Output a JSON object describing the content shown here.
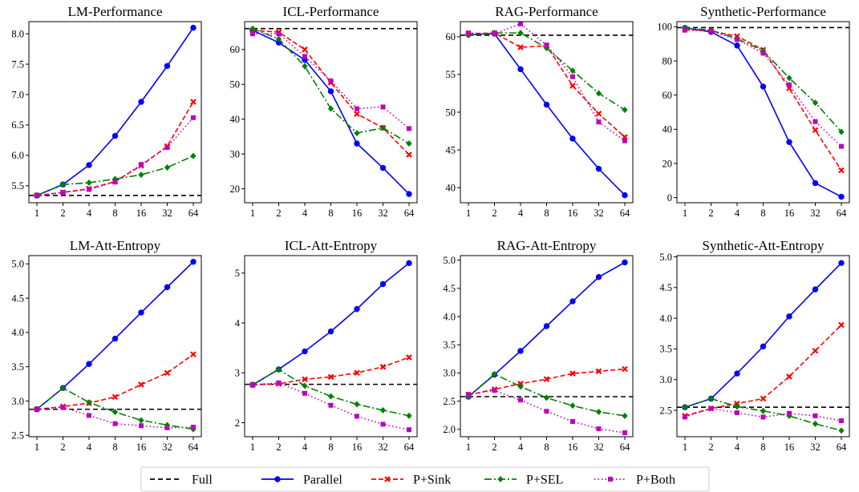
{
  "figure": {
    "x_ticks": [
      "1",
      "2",
      "4",
      "8",
      "16",
      "32",
      "64"
    ]
  },
  "legend": {
    "placement": "bottom-center",
    "items": [
      {
        "label": "Full",
        "color": "#000000",
        "dash": "6,4",
        "marker": "none"
      },
      {
        "label": "Parallel",
        "color": "#0000ff",
        "dash": "",
        "marker": "circle"
      },
      {
        "label": "P+Sink",
        "color": "#ff0000",
        "dash": "6,3",
        "marker": "x"
      },
      {
        "label": "P+SEL",
        "color": "#008000",
        "dash": "9,3,2,3",
        "marker": "diamond"
      },
      {
        "label": "P+Both",
        "color": "#bf00bf",
        "dash": "1.5,3",
        "marker": "square"
      }
    ]
  },
  "chart_data": [
    {
      "type": "line",
      "title": "LM-Performance",
      "categories": [
        "1",
        "2",
        "4",
        "8",
        "16",
        "32",
        "64"
      ],
      "ylim": [
        5.22,
        8.2
      ],
      "yticks": [
        5.5,
        6.0,
        6.5,
        7.0,
        7.5,
        8.0
      ],
      "ytick_labels": [
        "5.5",
        "6.0",
        "6.5",
        "7.0",
        "7.5",
        "8.0"
      ],
      "full_baseline": 5.34,
      "series": [
        {
          "name": "Parallel",
          "values": [
            5.34,
            5.52,
            5.84,
            6.32,
            6.88,
            7.47,
            8.1
          ]
        },
        {
          "name": "P+Sink",
          "values": [
            5.34,
            5.39,
            5.45,
            5.57,
            5.83,
            6.15,
            6.88
          ]
        },
        {
          "name": "P+SEL",
          "values": [
            5.34,
            5.52,
            5.55,
            5.61,
            5.68,
            5.8,
            5.99
          ]
        },
        {
          "name": "P+Both",
          "values": [
            5.34,
            5.39,
            5.44,
            5.56,
            5.85,
            6.13,
            6.62
          ]
        }
      ]
    },
    {
      "type": "line",
      "title": "ICL-Performance",
      "categories": [
        "1",
        "2",
        "4",
        "8",
        "16",
        "32",
        "64"
      ],
      "ylim": [
        16,
        68
      ],
      "yticks": [
        20,
        30,
        40,
        50,
        60
      ],
      "ytick_labels": [
        "20",
        "30",
        "40",
        "50",
        "60"
      ],
      "full_baseline": 66,
      "series": [
        {
          "name": "Parallel",
          "values": [
            65.5,
            62,
            57,
            48,
            33,
            26,
            18.5
          ]
        },
        {
          "name": "P+Sink",
          "values": [
            65.5,
            65,
            60,
            50.5,
            41.5,
            37.5,
            29.8
          ]
        },
        {
          "name": "P+SEL",
          "values": [
            66,
            63,
            55.2,
            43,
            36,
            37.5,
            33
          ]
        },
        {
          "name": "P+Both",
          "values": [
            64.5,
            64.5,
            58,
            51,
            43,
            43.5,
            37.3
          ]
        }
      ]
    },
    {
      "type": "line",
      "title": "RAG-Performance",
      "categories": [
        "1",
        "2",
        "4",
        "8",
        "16",
        "32",
        "64"
      ],
      "ylim": [
        38,
        62
      ],
      "yticks": [
        40,
        45,
        50,
        55,
        60
      ],
      "ytick_labels": [
        "40",
        "45",
        "50",
        "55",
        "60"
      ],
      "full_baseline": 60.2,
      "series": [
        {
          "name": "Parallel",
          "values": [
            60.3,
            60.4,
            55.7,
            51,
            46.5,
            42.5,
            39
          ]
        },
        {
          "name": "P+Sink",
          "values": [
            60.4,
            60.5,
            58.6,
            58.8,
            53.5,
            49.8,
            46.7
          ]
        },
        {
          "name": "P+SEL",
          "values": [
            60.2,
            60.5,
            60.5,
            58.5,
            55.5,
            52.5,
            50.3
          ]
        },
        {
          "name": "P+Both",
          "values": [
            60.5,
            60.4,
            61.7,
            58.9,
            54.7,
            48.7,
            46.2
          ]
        }
      ]
    },
    {
      "type": "line",
      "title": "Synthetic-Performance",
      "categories": [
        "1",
        "2",
        "4",
        "8",
        "16",
        "32",
        "64"
      ],
      "ylim": [
        -3,
        103
      ],
      "yticks": [
        0,
        20,
        40,
        60,
        80,
        100
      ],
      "ytick_labels": [
        "0",
        "20",
        "40",
        "60",
        "80",
        "100"
      ],
      "full_baseline": 99.5,
      "series": [
        {
          "name": "Parallel",
          "values": [
            99.3,
            97,
            89,
            65,
            32.5,
            8.5,
            0.5
          ]
        },
        {
          "name": "P+Sink",
          "values": [
            98.5,
            97.5,
            94.5,
            86.5,
            64,
            39.5,
            16
          ]
        },
        {
          "name": "P+SEL",
          "values": [
            99.3,
            98,
            93,
            86,
            70,
            55.5,
            38.5
          ]
        },
        {
          "name": "P+Both",
          "values": [
            98,
            97.5,
            92.5,
            84.5,
            66,
            44.5,
            30
          ]
        }
      ]
    },
    {
      "type": "line",
      "title": "LM-Att-Entropy",
      "categories": [
        "1",
        "2",
        "4",
        "8",
        "16",
        "32",
        "64"
      ],
      "ylim": [
        2.48,
        5.12
      ],
      "yticks": [
        2.5,
        3.0,
        3.5,
        4.0,
        4.5,
        5.0
      ],
      "ytick_labels": [
        "2.5",
        "3.0",
        "3.5",
        "4.0",
        "4.5",
        "5.0"
      ],
      "full_baseline": 2.88,
      "series": [
        {
          "name": "Parallel",
          "values": [
            2.88,
            3.19,
            3.54,
            3.91,
            4.29,
            4.66,
            5.03
          ]
        },
        {
          "name": "P+Sink",
          "values": [
            2.88,
            2.92,
            2.97,
            3.06,
            3.24,
            3.41,
            3.68
          ]
        },
        {
          "name": "P+SEL",
          "values": [
            2.88,
            3.19,
            2.98,
            2.84,
            2.72,
            2.65,
            2.59
          ]
        },
        {
          "name": "P+Both",
          "values": [
            2.88,
            2.91,
            2.79,
            2.67,
            2.64,
            2.61,
            2.62
          ]
        }
      ]
    },
    {
      "type": "line",
      "title": "ICL-Att-Entropy",
      "categories": [
        "1",
        "2",
        "4",
        "8",
        "16",
        "32",
        "64"
      ],
      "ylim": [
        1.72,
        5.35
      ],
      "yticks": [
        2,
        3,
        4,
        5
      ],
      "ytick_labels": [
        "2",
        "3",
        "4",
        "5"
      ],
      "full_baseline": 2.77,
      "series": [
        {
          "name": "Parallel",
          "values": [
            2.76,
            3.07,
            3.43,
            3.83,
            4.28,
            4.78,
            5.2
          ]
        },
        {
          "name": "P+Sink",
          "values": [
            2.76,
            2.78,
            2.87,
            2.92,
            3.0,
            3.12,
            3.31
          ]
        },
        {
          "name": "P+SEL",
          "values": [
            2.76,
            3.07,
            2.74,
            2.53,
            2.37,
            2.25,
            2.14
          ]
        },
        {
          "name": "P+Both",
          "values": [
            2.76,
            2.8,
            2.59,
            2.35,
            2.13,
            1.97,
            1.86
          ]
        }
      ]
    },
    {
      "type": "line",
      "title": "RAG-Att-Entropy",
      "categories": [
        "1",
        "2",
        "4",
        "8",
        "16",
        "32",
        "64"
      ],
      "ylim": [
        1.87,
        5.08
      ],
      "yticks": [
        2.0,
        2.5,
        3.0,
        3.5,
        4.0,
        4.5,
        5.0
      ],
      "ytick_labels": [
        "2.0",
        "2.5",
        "3.0",
        "3.5",
        "4.0",
        "4.5",
        "5.0"
      ],
      "full_baseline": 2.58,
      "series": [
        {
          "name": "Parallel",
          "values": [
            2.58,
            2.97,
            3.39,
            3.83,
            4.27,
            4.7,
            4.96
          ]
        },
        {
          "name": "P+Sink",
          "values": [
            2.61,
            2.71,
            2.81,
            2.89,
            2.99,
            3.03,
            3.07
          ]
        },
        {
          "name": "P+SEL",
          "values": [
            2.58,
            2.98,
            2.76,
            2.56,
            2.42,
            2.31,
            2.24
          ]
        },
        {
          "name": "P+Both",
          "values": [
            2.62,
            2.69,
            2.52,
            2.32,
            2.14,
            2.01,
            1.94
          ]
        }
      ]
    },
    {
      "type": "line",
      "title": "Synthetic-Att-Entropy",
      "categories": [
        "1",
        "2",
        "4",
        "8",
        "16",
        "32",
        "64"
      ],
      "ylim": [
        2.07,
        5.02
      ],
      "yticks": [
        2.5,
        3.0,
        3.5,
        4.0,
        4.5,
        5.0
      ],
      "ytick_labels": [
        "2.5",
        "3.0",
        "3.5",
        "4.0",
        "4.5",
        "5.0"
      ],
      "full_baseline": 2.55,
      "series": [
        {
          "name": "Parallel",
          "values": [
            2.55,
            2.69,
            3.1,
            3.54,
            4.03,
            4.47,
            4.9
          ]
        },
        {
          "name": "P+Sink",
          "values": [
            2.41,
            2.53,
            2.61,
            2.69,
            3.05,
            3.47,
            3.89
          ]
        },
        {
          "name": "P+SEL",
          "values": [
            2.55,
            2.69,
            2.56,
            2.49,
            2.41,
            2.28,
            2.17
          ]
        },
        {
          "name": "P+Both",
          "values": [
            2.39,
            2.53,
            2.46,
            2.39,
            2.45,
            2.41,
            2.33
          ]
        }
      ]
    }
  ]
}
